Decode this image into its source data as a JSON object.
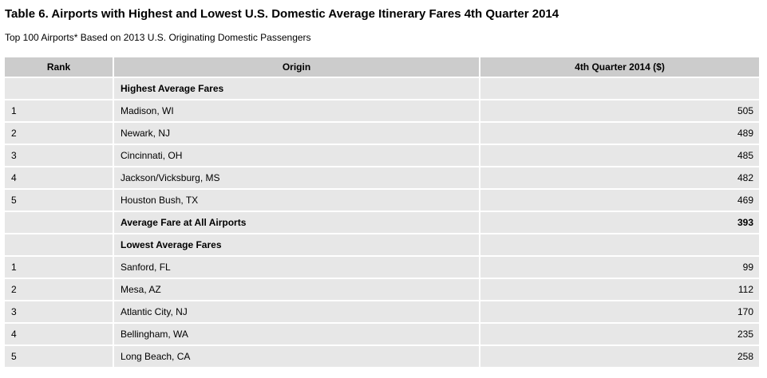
{
  "title": "Table 6. Airports with Highest and Lowest U.S. Domestic Average Itinerary Fares 4th Quarter 2014",
  "subtitle": "Top 100 Airports* Based on 2013 U.S. Originating Domestic Passengers",
  "colors": {
    "header_bg": "#cccccc",
    "row_bg": "#e7e7e7",
    "separator": "#ffffff",
    "text": "#000000"
  },
  "chart_data": {
    "type": "table",
    "title": "Table 6. Airports with Highest and Lowest U.S. Domestic Average Itinerary Fares 4th Quarter 2014",
    "subtitle": "Top 100 Airports* Based on 2013 U.S. Originating Domestic Passengers",
    "columns": [
      "Rank",
      "Origin",
      "4th Quarter 2014 ($)"
    ],
    "rows": [
      {
        "rank": "",
        "origin": "Highest Average Fares",
        "value": "",
        "bold": true
      },
      {
        "rank": "1",
        "origin": "Madison, WI",
        "value": "505",
        "bold": false
      },
      {
        "rank": "2",
        "origin": "Newark, NJ",
        "value": "489",
        "bold": false
      },
      {
        "rank": "3",
        "origin": "Cincinnati, OH",
        "value": "485",
        "bold": false
      },
      {
        "rank": "4",
        "origin": "Jackson/Vicksburg, MS",
        "value": "482",
        "bold": false
      },
      {
        "rank": "5",
        "origin": "Houston Bush, TX",
        "value": "469",
        "bold": false
      },
      {
        "rank": "",
        "origin": "Average Fare at All Airports",
        "value": "393",
        "bold": true
      },
      {
        "rank": "",
        "origin": "Lowest Average Fares",
        "value": "",
        "bold": true
      },
      {
        "rank": "1",
        "origin": "Sanford, FL",
        "value": "99",
        "bold": false
      },
      {
        "rank": "2",
        "origin": "Mesa, AZ",
        "value": "112",
        "bold": false
      },
      {
        "rank": "3",
        "origin": "Atlantic City, NJ",
        "value": "170",
        "bold": false
      },
      {
        "rank": "4",
        "origin": "Bellingham, WA",
        "value": "235",
        "bold": false
      },
      {
        "rank": "5",
        "origin": "Long Beach, CA",
        "value": "258",
        "bold": false
      }
    ]
  }
}
